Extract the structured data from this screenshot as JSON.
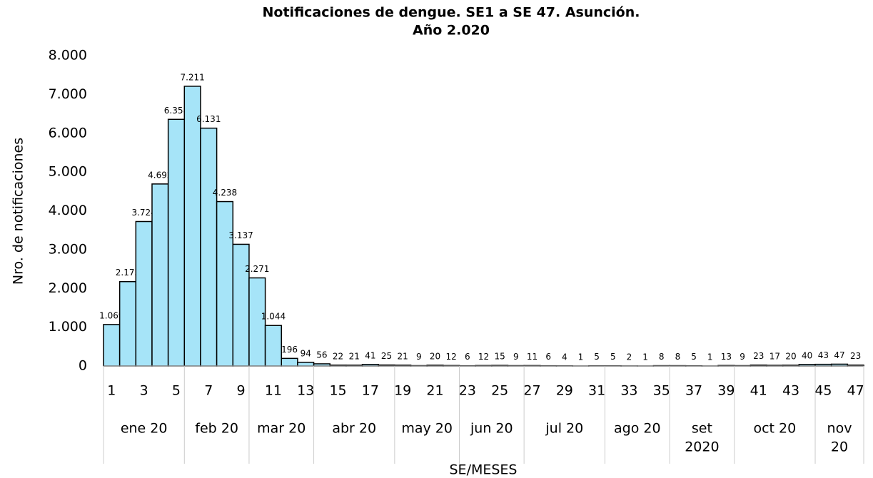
{
  "chart_data": {
    "type": "bar",
    "title": [
      "Notificaciones de dengue. SE1 a SE 47. Asunción.",
      "Año 2.020"
    ],
    "y_label": "Nro. de notificaciones",
    "x_label": "SE/MESES",
    "color": "#a6e4f8",
    "categories": [
      "1",
      null,
      "3",
      null,
      "5",
      null,
      "7",
      null,
      "9",
      null,
      "11",
      null,
      "13",
      null,
      "15",
      null,
      "17",
      null,
      "19",
      null,
      "21",
      null,
      "23",
      null,
      "25",
      null,
      "27",
      null,
      "29",
      null,
      "31",
      null,
      "33",
      null,
      "35",
      null,
      "37",
      null,
      "39",
      null,
      "41",
      null,
      "43",
      null,
      "45",
      null,
      "47"
    ],
    "values": [
      1069,
      2175,
      3724,
      4692,
      6358,
      7211,
      6131,
      4238,
      3137,
      2271,
      1044,
      196,
      94,
      56,
      22,
      21,
      41,
      25,
      21,
      9,
      20,
      12,
      6,
      12,
      15,
      9,
      11,
      6,
      4,
      1,
      5,
      5,
      2,
      1,
      8,
      8,
      5,
      1,
      13,
      9,
      23,
      17,
      20,
      40,
      43,
      47,
      23
    ],
    "value_labels": [
      "1.069",
      "2.175",
      "3.724",
      "4.692",
      "6.358",
      "7.211",
      "6.131",
      "4.238",
      "3.137",
      "2.271",
      "1.044",
      "196",
      "94",
      "56",
      "22",
      "21",
      "41",
      "25",
      "21",
      "9",
      "20",
      "12",
      "6",
      "12",
      "15",
      "9",
      "11",
      "6",
      "4",
      "1",
      "5",
      "5",
      "2",
      "1",
      "8",
      "8",
      "5",
      "1",
      "13",
      "9",
      "23",
      "17",
      "20",
      "40",
      "43",
      "47",
      "23"
    ],
    "months": [
      {
        "label": [
          "ene 20"
        ],
        "span": 5
      },
      {
        "label": [
          "feb 20"
        ],
        "span": 4
      },
      {
        "label": [
          "mar 20"
        ],
        "span": 4
      },
      {
        "label": [
          "abr 20"
        ],
        "span": 5
      },
      {
        "label": [
          "may 20"
        ],
        "span": 4
      },
      {
        "label": [
          "jun 20"
        ],
        "span": 4
      },
      {
        "label": [
          "jul 20"
        ],
        "span": 5
      },
      {
        "label": [
          "ago 20"
        ],
        "span": 4
      },
      {
        "label": [
          "set",
          "2020"
        ],
        "span": 4
      },
      {
        "label": [
          "oct 20"
        ],
        "span": 5
      },
      {
        "label": [
          "nov",
          "20"
        ],
        "span": 3
      }
    ],
    "ylim": [
      0,
      8000
    ],
    "yticks": [
      0,
      {
        "value": 1000,
        "label": "1.000"
      },
      {
        "value": 2000,
        "label": "2.000"
      },
      {
        "value": 3000,
        "label": "3.000"
      },
      {
        "value": 4000,
        "label": "4.000"
      },
      {
        "value": 5000,
        "label": "5.000"
      },
      {
        "value": 6000,
        "label": "6.000"
      },
      {
        "value": 7000,
        "label": "7.000"
      },
      {
        "value": 8000,
        "label": "8.000"
      }
    ],
    "grid": false
  }
}
